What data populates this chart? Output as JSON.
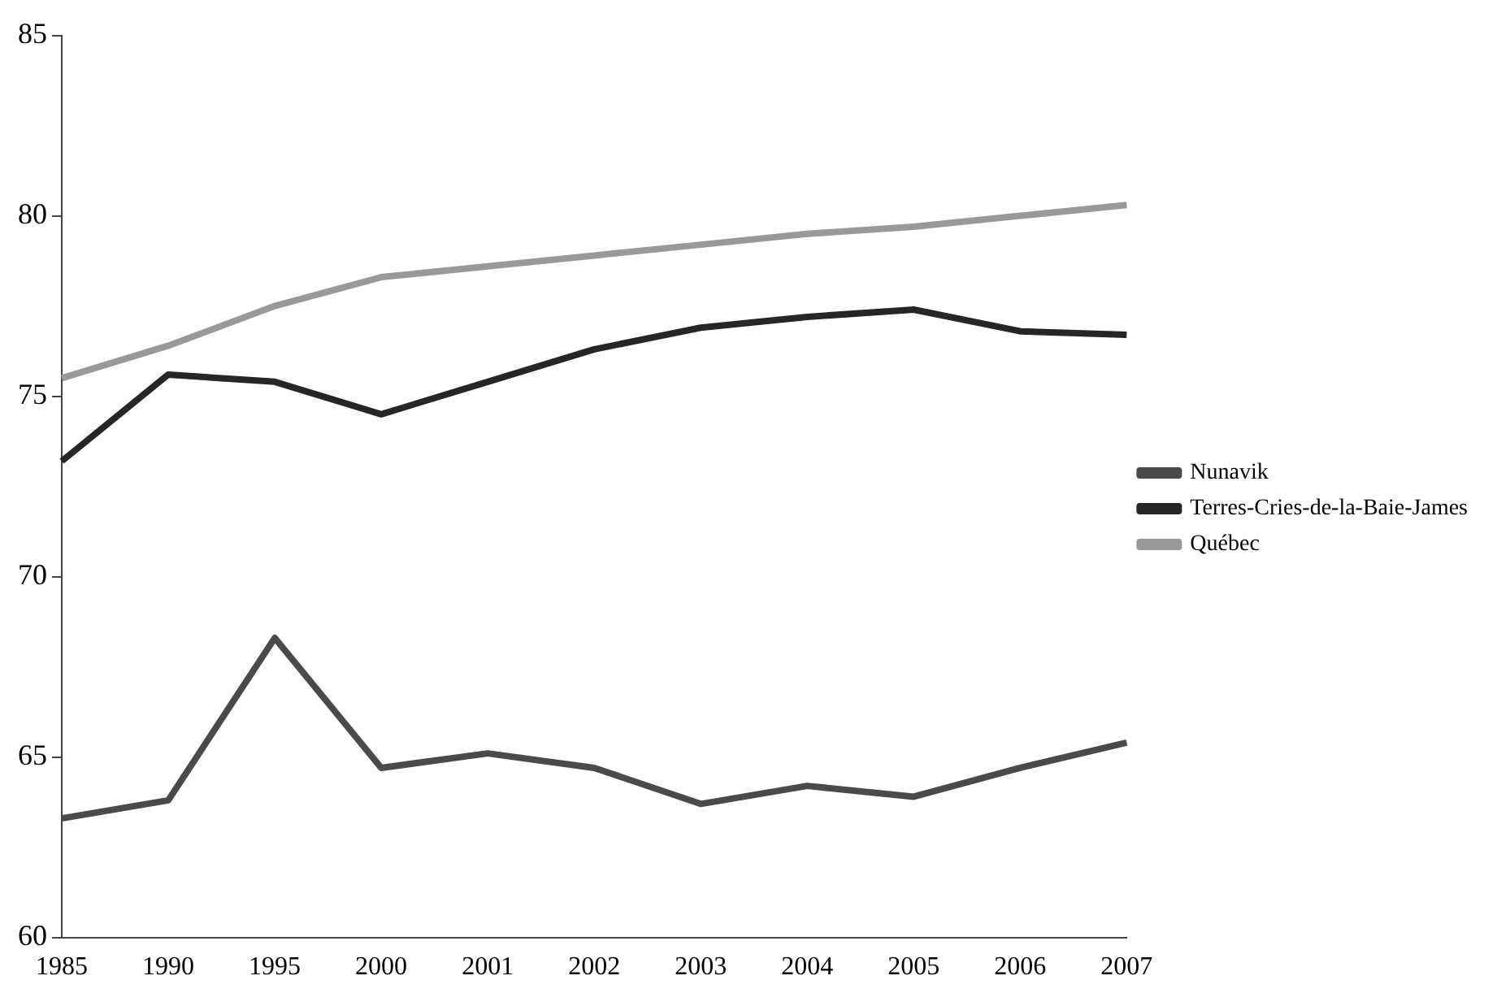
{
  "chart_data": {
    "type": "line",
    "categories": [
      "1985",
      "1990",
      "1995",
      "2000",
      "2001",
      "2002",
      "2003",
      "2004",
      "2005",
      "2006",
      "2007"
    ],
    "series": [
      {
        "name": "Nunavik",
        "color": "#4a4a4a",
        "values": [
          63.3,
          63.8,
          68.3,
          64.7,
          65.1,
          64.7,
          63.7,
          64.2,
          63.9,
          64.7,
          65.4
        ]
      },
      {
        "name": "Terres-Cries-de-la-Baie-James",
        "color": "#262626",
        "values": [
          73.2,
          75.6,
          75.4,
          74.5,
          75.4,
          76.3,
          76.9,
          77.2,
          77.4,
          76.8,
          76.7
        ]
      },
      {
        "name": "Québec",
        "color": "#999999",
        "values": [
          75.5,
          76.4,
          77.5,
          78.3,
          78.6,
          78.9,
          79.2,
          79.5,
          79.7,
          80.0,
          80.3
        ]
      }
    ],
    "ylim": [
      60,
      85
    ],
    "yticks": [
      60,
      65,
      70,
      75,
      80,
      85
    ],
    "grid": false,
    "legend": "right",
    "marker": "none",
    "line_style": "solid"
  }
}
